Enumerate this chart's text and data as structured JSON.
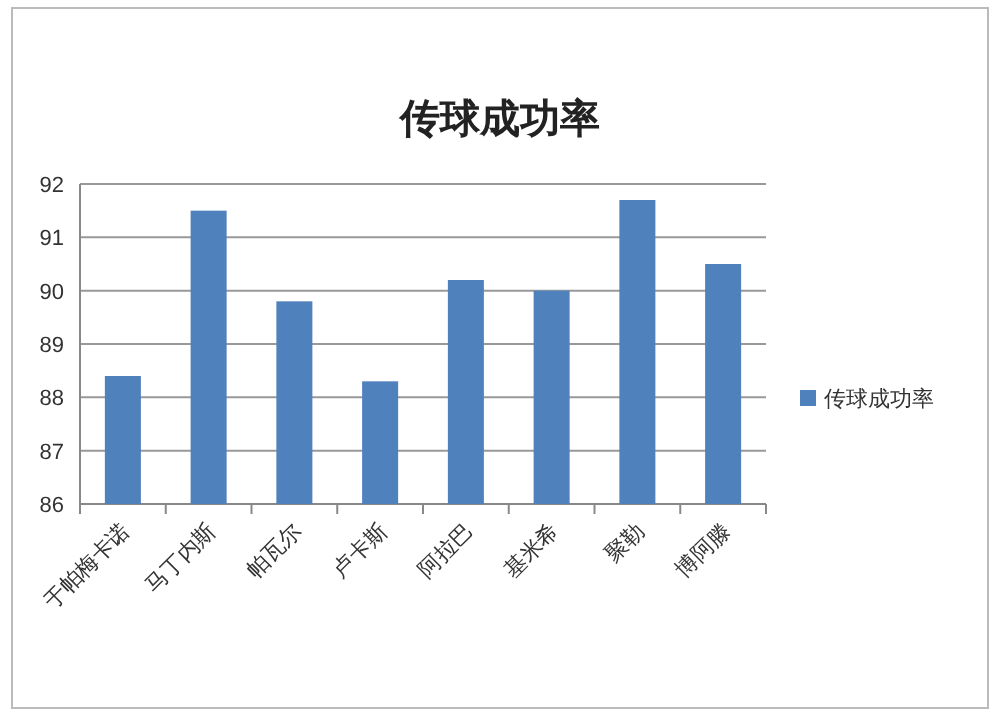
{
  "chart_data": {
    "type": "bar",
    "title": "传球成功率",
    "categories": [
      "于帕梅卡诺",
      "马丁内斯",
      "帕瓦尔",
      "卢卡斯",
      "阿拉巴",
      "基米希",
      "聚勒",
      "博阿滕"
    ],
    "series": [
      {
        "name": "传球成功率",
        "color": "#4f81bd",
        "values": [
          88.4,
          91.5,
          89.8,
          88.3,
          90.2,
          90.0,
          91.7,
          90.5
        ]
      }
    ],
    "ylim": [
      86,
      92
    ],
    "yticks": [
      86,
      87,
      88,
      89,
      90,
      91,
      92
    ],
    "grid": "y",
    "legend": "right"
  }
}
